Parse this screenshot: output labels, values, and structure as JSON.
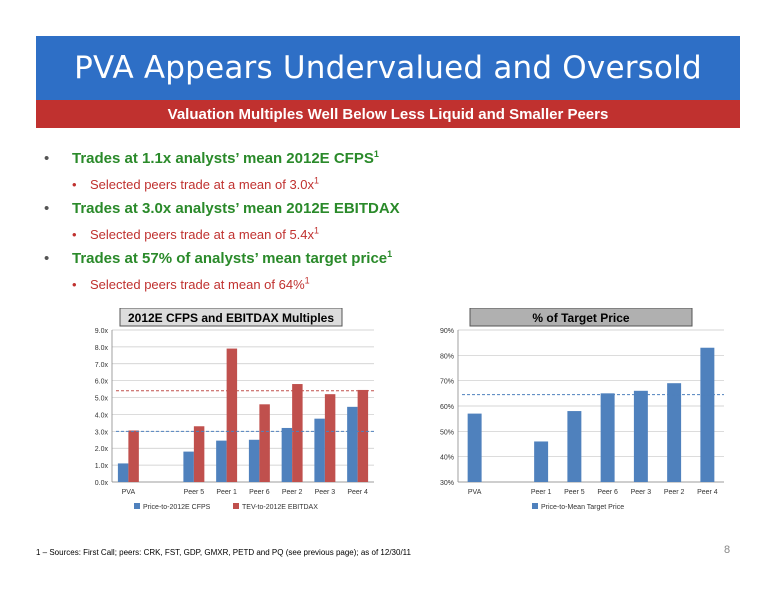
{
  "header": {
    "title": "PVA Appears Undervalued and Oversold",
    "subtitle": "Valuation Multiples Well Below Less Liquid and Smaller Peers"
  },
  "bullets": [
    {
      "level": 1,
      "text": "Trades at 1.1x analysts’ mean 2012E CFPS",
      "sup": "1"
    },
    {
      "level": 2,
      "text": "Selected peers trade at a mean of 3.0x",
      "sup": "1"
    },
    {
      "level": 1,
      "text": "Trades at 3.0x analysts’ mean 2012E EBITDAX",
      "sup": ""
    },
    {
      "level": 2,
      "text": "Selected peers trade at a mean of 5.4x",
      "sup": "1"
    },
    {
      "level": 1,
      "text": "Trades at 57% of analysts’ mean target price",
      "sup": "1"
    },
    {
      "level": 2,
      "text": "Selected peers trade at mean of 64%",
      "sup": "1"
    }
  ],
  "chart_data": [
    {
      "type": "bar",
      "title": "2012E CFPS and EBITDAX Multiples",
      "categories": [
        "PVA",
        "",
        "Peer 5",
        "Peer 1",
        "Peer 6",
        "Peer 2",
        "Peer 3",
        "Peer 4"
      ],
      "series": [
        {
          "name": "Price-to-2012E CFPS",
          "values": [
            1.1,
            null,
            1.8,
            2.45,
            2.5,
            3.2,
            3.75,
            4.45
          ],
          "color": "#4f81bd"
        },
        {
          "name": "TEV-to-2012E EBITDAX",
          "values": [
            3.05,
            null,
            3.3,
            7.9,
            4.6,
            5.8,
            5.2,
            5.45
          ],
          "color": "#c0504d"
        }
      ],
      "reference_lines": [
        {
          "value": 3.0,
          "color": "#4f81bd"
        },
        {
          "value": 5.4,
          "color": "#c0504d"
        }
      ],
      "ylim": [
        0,
        9
      ],
      "yticks": [
        "0.0x",
        "1.0x",
        "2.0x",
        "3.0x",
        "4.0x",
        "5.0x",
        "6.0x",
        "7.0x",
        "8.0x",
        "9.0x"
      ],
      "grid": true,
      "legend_position": "bottom"
    },
    {
      "type": "bar",
      "title": "% of Target Price",
      "categories": [
        "PVA",
        "",
        "Peer 1",
        "Peer 5",
        "Peer 6",
        "Peer 3",
        "Peer 2",
        "Peer 4"
      ],
      "series": [
        {
          "name": "Price-to-Mean Target Price",
          "values": [
            57,
            null,
            46,
            58,
            65,
            66,
            69,
            83
          ],
          "color": "#4f81bd"
        }
      ],
      "reference_lines": [
        {
          "value": 64.5,
          "color": "#4f81bd"
        }
      ],
      "ylim": [
        30,
        90
      ],
      "yticks": [
        "30%",
        "40%",
        "50%",
        "60%",
        "70%",
        "80%",
        "90%"
      ],
      "grid": true,
      "legend_position": "bottom"
    }
  ],
  "footnote": "1 – Sources: First Call; peers: CRK, FST, GDP, GMXR, PETD and PQ (see previous page); as of 12/30/11",
  "page_number": "8"
}
